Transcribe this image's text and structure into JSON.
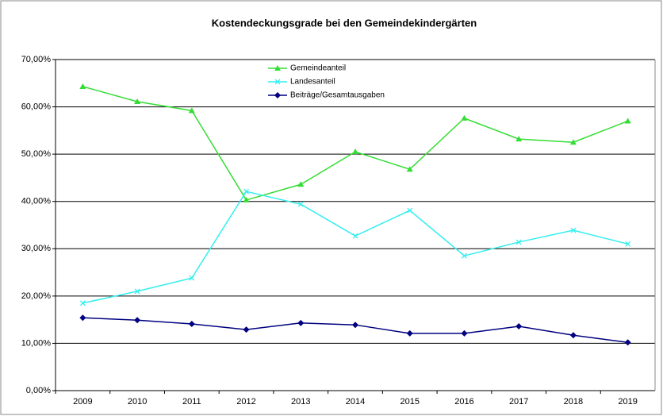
{
  "chart_data": {
    "type": "line",
    "title": "Kostendeckungsgrade bei den Gemeindekindergärten",
    "categories": [
      "2009",
      "2010",
      "2011",
      "2012",
      "2013",
      "2014",
      "2015",
      "2016",
      "2017",
      "2018",
      "2019"
    ],
    "series": [
      {
        "name": "Gemeindeanteil",
        "color": "#33dd33",
        "marker": "triangle",
        "values": [
          64.3,
          61.1,
          59.2,
          40.3,
          43.6,
          50.5,
          46.8,
          57.6,
          53.2,
          52.5,
          57.0
        ]
      },
      {
        "name": "Landesanteil",
        "color": "#33eeee",
        "marker": "x",
        "values": [
          18.5,
          21.0,
          23.8,
          42.1,
          39.4,
          32.7,
          38.1,
          28.5,
          31.4,
          33.9,
          31.0
        ]
      },
      {
        "name": "Beiträge/Gesamtausgaben",
        "color": "#000080",
        "marker": "diamond",
        "values": [
          15.4,
          14.9,
          14.1,
          12.9,
          14.3,
          13.9,
          12.1,
          12.1,
          13.6,
          11.7,
          10.2
        ]
      }
    ],
    "ylim": [
      0,
      70
    ],
    "yticks": [
      {
        "value": 0,
        "label": "0,00%"
      },
      {
        "value": 10,
        "label": "10,00%"
      },
      {
        "value": 20,
        "label": "20,00%"
      },
      {
        "value": 30,
        "label": "30,00%"
      },
      {
        "value": 40,
        "label": "40,00%"
      },
      {
        "value": 50,
        "label": "50,00%"
      },
      {
        "value": 60,
        "label": "60,00%"
      },
      {
        "value": 70,
        "label": "70,00%"
      }
    ],
    "grid": true
  }
}
